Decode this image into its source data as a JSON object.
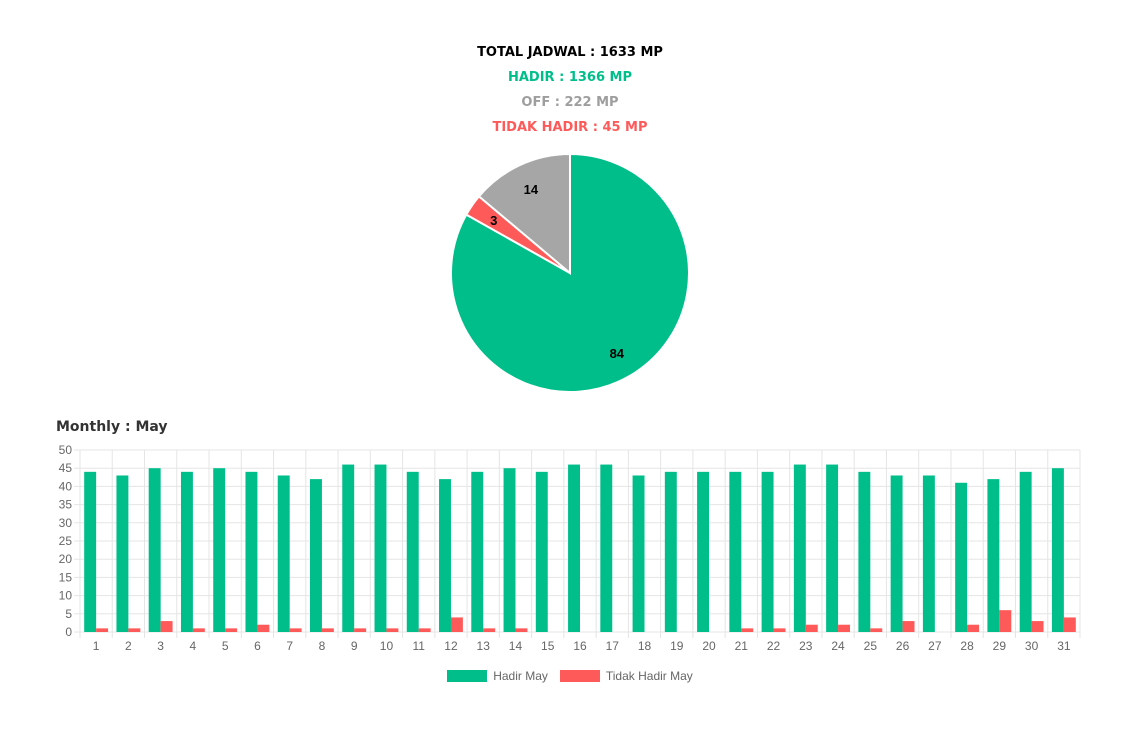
{
  "summary": {
    "total": "TOTAL JADWAL : 1633 MP",
    "hadir": "HADIR : 1366 MP",
    "off": "OFF : 222 MP",
    "tidak_hadir": "TIDAK HADIR : 45 MP"
  },
  "colors": {
    "total": "#000000",
    "hadir": "#00BE8A",
    "off": "#9E9E9E",
    "tidak_hadir": "#FF5A5A",
    "pie_off": "#A6A6A6",
    "grid": "#E5E5E5",
    "tick": "#666666"
  },
  "monthly_title": "Monthly : May",
  "chart_data": [
    {
      "type": "pie",
      "slices": [
        {
          "label": "Hadir",
          "value": 84,
          "color": "#00BE8A"
        },
        {
          "label": "Tidak Hadir",
          "value": 3,
          "color": "#FF5A5A"
        },
        {
          "label": "Off",
          "value": 14,
          "color": "#A6A6A6"
        }
      ],
      "data_labels": [
        "84",
        "3",
        "14"
      ]
    },
    {
      "type": "bar",
      "categories": [
        "1",
        "2",
        "3",
        "4",
        "5",
        "6",
        "7",
        "8",
        "9",
        "10",
        "11",
        "12",
        "13",
        "14",
        "15",
        "16",
        "17",
        "18",
        "19",
        "20",
        "21",
        "22",
        "23",
        "24",
        "25",
        "26",
        "27",
        "28",
        "29",
        "30",
        "31"
      ],
      "series": [
        {
          "name": "Hadir May",
          "color": "#00BE8A",
          "values": [
            44,
            43,
            45,
            44,
            45,
            44,
            43,
            42,
            46,
            46,
            44,
            42,
            44,
            45,
            44,
            46,
            46,
            43,
            44,
            44,
            44,
            44,
            46,
            46,
            44,
            43,
            43,
            41,
            42,
            44,
            45
          ]
        },
        {
          "name": "Tidak Hadir May",
          "color": "#FF5A5A",
          "values": [
            1,
            1,
            3,
            1,
            1,
            2,
            1,
            1,
            1,
            1,
            1,
            4,
            1,
            1,
            0,
            0,
            0,
            0,
            0,
            0,
            1,
            1,
            2,
            2,
            1,
            3,
            0,
            2,
            6,
            3,
            4
          ]
        }
      ],
      "ylim": [
        0,
        50
      ],
      "yticks": [
        "0",
        "5",
        "10",
        "15",
        "20",
        "25",
        "30",
        "35",
        "40",
        "45",
        "50"
      ],
      "grid": true,
      "legend": "bottom"
    }
  ]
}
